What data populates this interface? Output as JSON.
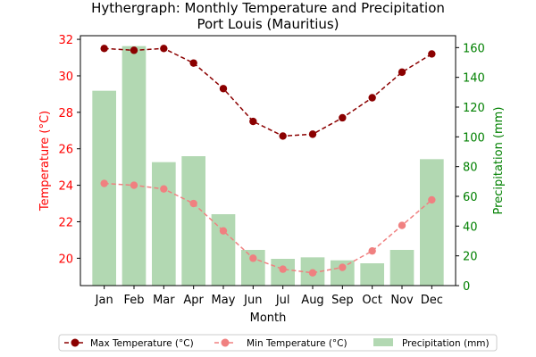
{
  "chart_data": {
    "type": "bar+line",
    "title": "Hythergraph: Monthly Temperature and Precipitation",
    "subtitle": "Port Louis (Mauritius)",
    "xlabel": "Month",
    "ylabel_left": "Temperature (°C)",
    "ylabel_right": "Precipitation (mm)",
    "categories": [
      "Jan",
      "Feb",
      "Mar",
      "Apr",
      "May",
      "Jun",
      "Jul",
      "Aug",
      "Sep",
      "Oct",
      "Nov",
      "Dec"
    ],
    "ylim_left": [
      18.5,
      32.2
    ],
    "ylim_right": [
      0,
      168
    ],
    "yticks_left": [
      20,
      22,
      24,
      26,
      28,
      30,
      32
    ],
    "yticks_right": [
      0,
      20,
      40,
      60,
      80,
      100,
      120,
      140,
      160
    ],
    "series": [
      {
        "name": "Max Temperature (°C)",
        "type": "line",
        "axis": "left",
        "color": "#8b0000",
        "dash": "dashed",
        "values": [
          31.5,
          31.4,
          31.5,
          30.7,
          29.3,
          27.5,
          26.7,
          26.8,
          27.7,
          28.8,
          30.2,
          31.2
        ]
      },
      {
        "name": "Min Temperature (°C)",
        "type": "line",
        "axis": "left",
        "color": "#f08080",
        "dash": "dashed",
        "values": [
          24.1,
          24.0,
          23.8,
          23.0,
          21.5,
          20.0,
          19.4,
          19.2,
          19.5,
          20.4,
          21.8,
          23.2
        ]
      },
      {
        "name": "Precipitation (mm)",
        "type": "bar",
        "axis": "right",
        "color": "#b2d8b2",
        "values": [
          131,
          161,
          83,
          87,
          48,
          24,
          18,
          19,
          17,
          15,
          24,
          85
        ]
      }
    ],
    "colors": {
      "left_axis": "#ff0000",
      "right_axis": "#008000"
    },
    "grid": false,
    "legend_position": "bottom-center"
  }
}
